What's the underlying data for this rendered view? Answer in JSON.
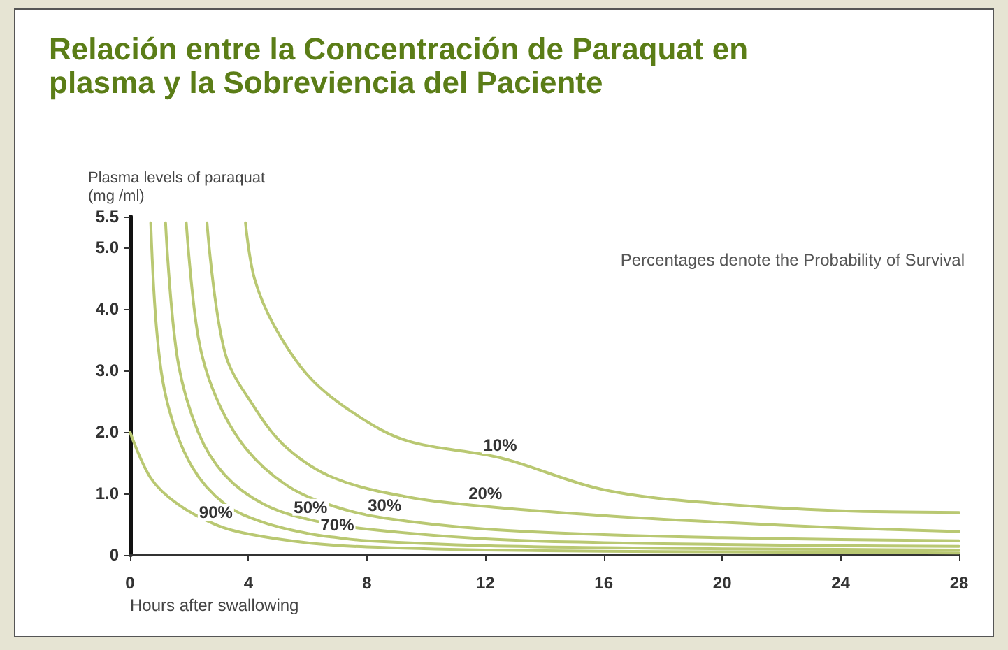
{
  "chart_data": {
    "type": "line",
    "title": "Relación entre la Concentración de Paraquat en plasma y la Sobreviencia del Paciente",
    "xlabel": "Hours after swallowing",
    "ylabel": "Plasma levels of paraquat\n(mg /ml)",
    "annotations": [
      "Percentages denote the Probability of Survival",
      {
        "text": "90%",
        "x": 2.9,
        "y": 0.49
      },
      {
        "text": "70%",
        "x": 7,
        "y": 0.28
      },
      {
        "text": "50%",
        "x": 6.1,
        "y": 0.57
      },
      {
        "text": "30%",
        "x": 8.6,
        "y": 0.6
      },
      {
        "text": "20%",
        "x": 12,
        "y": 0.79
      },
      {
        "text": "10%",
        "x": 12.5,
        "y": 1.58
      }
    ],
    "series": [
      {
        "color": "#b9c872",
        "x": [
          0,
          0.7,
          1.6,
          2.9,
          4,
          6.1,
          8,
          12,
          16,
          20,
          24,
          28
        ],
        "values": [
          2.0,
          1.25,
          0.83,
          0.49,
          0.34,
          0.19,
          0.13,
          0.08,
          0.06,
          0.05,
          0.04,
          0.03
        ]
      },
      {
        "color": "#b9c872",
        "x": [
          0.7,
          0.92,
          1.3,
          2.1,
          3.2,
          4.5,
          6.1,
          7,
          8,
          12,
          16,
          20,
          24,
          28
        ],
        "values": [
          5.4,
          3.55,
          2.4,
          1.43,
          0.83,
          0.53,
          0.34,
          0.28,
          0.23,
          0.15,
          0.12,
          0.1,
          0.09,
          0.08
        ]
      },
      {
        "color": "#b9c872",
        "x": [
          1.2,
          1.6,
          2.3,
          3.2,
          4.5,
          6.1,
          8,
          12,
          16,
          20,
          24,
          28
        ],
        "values": [
          5.4,
          3.2,
          2.0,
          1.3,
          0.83,
          0.57,
          0.42,
          0.26,
          0.2,
          0.17,
          0.15,
          0.14
        ]
      },
      {
        "color": "#b9c872",
        "x": [
          1.9,
          2.3,
          2.9,
          3.9,
          5.3,
          6.9,
          8.6,
          12,
          16,
          20,
          24,
          28
        ],
        "values": [
          5.4,
          3.55,
          2.57,
          1.74,
          1.13,
          0.79,
          0.6,
          0.42,
          0.33,
          0.28,
          0.25,
          0.23
        ]
      },
      {
        "color": "#b9c872",
        "x": [
          2.6,
          3.2,
          4.2,
          5.3,
          6.9,
          9.4,
          12,
          16,
          20,
          24,
          28
        ],
        "values": [
          5.4,
          3.3,
          2.4,
          1.74,
          1.25,
          0.94,
          0.79,
          0.64,
          0.53,
          0.44,
          0.38
        ]
      },
      {
        "color": "#b9c872",
        "x": [
          3.9,
          4.2,
          4.9,
          6.1,
          7.7,
          9.4,
          12.5,
          16,
          20,
          24,
          28
        ],
        "values": [
          5.4,
          4.5,
          3.7,
          2.87,
          2.26,
          1.85,
          1.58,
          1.06,
          0.83,
          0.72,
          0.69
        ]
      }
    ],
    "xlim": [
      0,
      28
    ],
    "xticks": [
      0,
      4,
      8,
      12,
      16,
      20,
      24,
      28
    ],
    "ylim": [
      0,
      5.5
    ],
    "yticks": [
      {
        "value": 0,
        "label": "0"
      },
      {
        "value": 1,
        "label": "1.0"
      },
      {
        "value": 2,
        "label": "2.0"
      },
      {
        "value": 3,
        "label": "3.0"
      },
      {
        "value": 4,
        "label": "4.0"
      },
      {
        "value": 5,
        "label": "5.0"
      },
      {
        "value": 5.5,
        "label": "5.5"
      }
    ],
    "grid": false,
    "marker": "none",
    "line_style": "solid"
  }
}
